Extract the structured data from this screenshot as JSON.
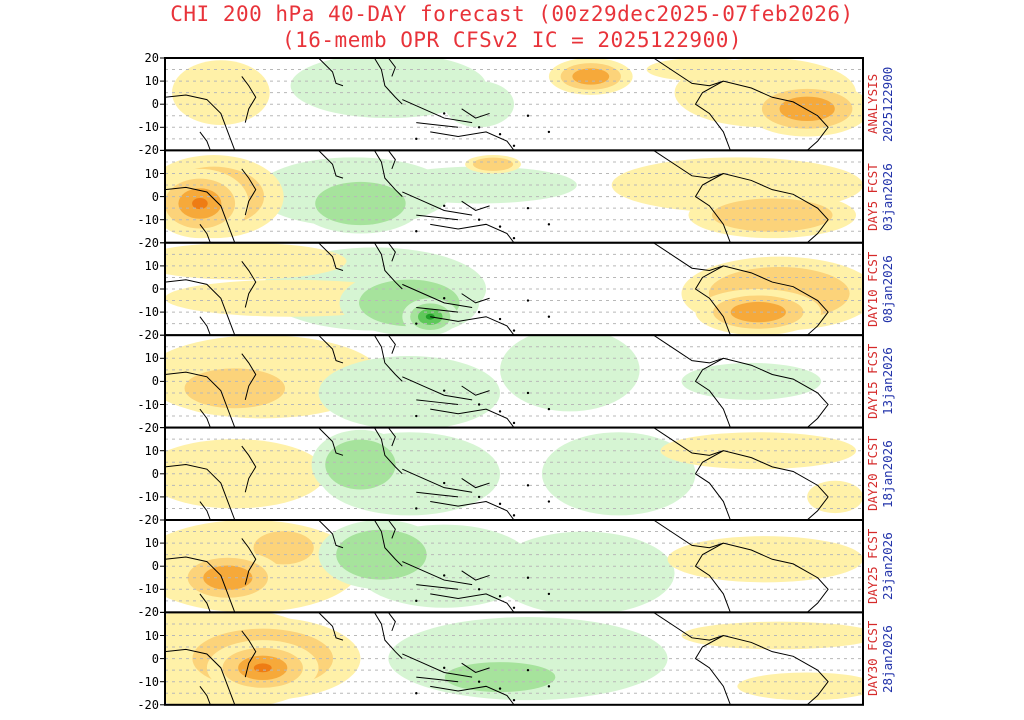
{
  "header": {
    "title_line1": "CHI 200 hPa 40-DAY forecast (00z29dec2025-07feb2026)",
    "title_line2": "(16-memb OPR CFSv2 IC = 2025122900)"
  },
  "map": {
    "variable": "CHI 200 hPa",
    "lat_ticks": [
      20,
      10,
      0,
      -10,
      -20
    ],
    "gridline_latitudes": [
      15,
      10,
      5,
      0,
      -5,
      -10,
      -15
    ],
    "colors": {
      "frame": "#000000",
      "gridline": "#b8b8b8",
      "coast": "#000000",
      "pos_light": "#fff1a8",
      "pos_mid": "#fcd37a",
      "pos_strong": "#f6a93a",
      "pos_max": "#ee7c14",
      "neg_light": "#d6f5d3",
      "neg_mid": "#a6e39c",
      "neg_strong": "#5fc85a",
      "neg_max": "#22a02a"
    },
    "panels": [
      {
        "label": "ANALYSIS",
        "date": "2025122900"
      },
      {
        "label": "DAY5 FCST",
        "date": "03jan2026"
      },
      {
        "label": "DAY10 FCST",
        "date": "08jan2026"
      },
      {
        "label": "DAY15 FCST",
        "date": "13jan2026"
      },
      {
        "label": "DAY20 FCST",
        "date": "18jan2026"
      },
      {
        "label": "DAY25 FCST",
        "date": "23jan2026"
      },
      {
        "label": "DAY30 FCST",
        "date": "28jan2026"
      }
    ]
  }
}
